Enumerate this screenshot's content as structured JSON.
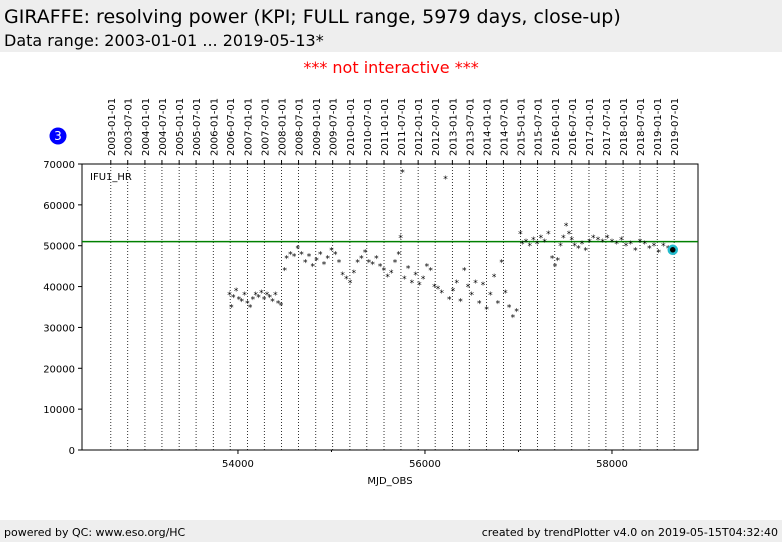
{
  "header": {
    "title": "GIRAFFE: resolving power (KPI; FULL range, 5979 days, close-up)",
    "subtitle": "Data range: 2003-01-01 ... 2019-05-13*"
  },
  "notice": "*** not interactive ***",
  "badge": "3",
  "footer": {
    "left": "powered by QC: www.eso.org/HC",
    "right": "created by trendPlotter v4.0 on 2019-05-15T04:32:40"
  },
  "chart_data": {
    "type": "scatter",
    "xlabel": "MJD_OBS",
    "annotation": "IFU1_HR",
    "color": "#000000",
    "xlim": [
      52332,
      58920
    ],
    "xticks": [
      54000,
      56000,
      58000
    ],
    "xminor_ticks": [
      55000,
      57000
    ],
    "ylim": [
      0,
      70000
    ],
    "yticks": [
      0,
      10000,
      20000,
      30000,
      40000,
      50000,
      60000,
      70000
    ],
    "reference_line": {
      "value": 51000,
      "color": "#008000"
    },
    "highlight": {
      "x": 58650,
      "y": 49000,
      "color": "#22bbcc"
    },
    "top_ticks": [
      {
        "value": 52640,
        "label": "2003-01-01"
      },
      {
        "value": 52821,
        "label": "2003-07-01"
      },
      {
        "value": 53005,
        "label": "2004-01-01"
      },
      {
        "value": 53187,
        "label": "2004-07-01"
      },
      {
        "value": 53371,
        "label": "2005-01-01"
      },
      {
        "value": 53552,
        "label": "2005-07-01"
      },
      {
        "value": 53736,
        "label": "2006-01-01"
      },
      {
        "value": 53917,
        "label": "2006-07-01"
      },
      {
        "value": 54101,
        "label": "2007-01-01"
      },
      {
        "value": 54282,
        "label": "2007-07-01"
      },
      {
        "value": 54466,
        "label": "2008-01-01"
      },
      {
        "value": 54648,
        "label": "2008-07-01"
      },
      {
        "value": 54832,
        "label": "2009-01-01"
      },
      {
        "value": 55013,
        "label": "2009-07-01"
      },
      {
        "value": 55197,
        "label": "2010-01-01"
      },
      {
        "value": 55378,
        "label": "2010-07-01"
      },
      {
        "value": 55562,
        "label": "2011-01-01"
      },
      {
        "value": 55743,
        "label": "2011-07-01"
      },
      {
        "value": 55927,
        "label": "2012-01-01"
      },
      {
        "value": 56109,
        "label": "2012-07-01"
      },
      {
        "value": 56293,
        "label": "2013-01-01"
      },
      {
        "value": 56474,
        "label": "2013-07-01"
      },
      {
        "value": 56658,
        "label": "2014-01-01"
      },
      {
        "value": 56839,
        "label": "2014-07-01"
      },
      {
        "value": 57023,
        "label": "2015-01-01"
      },
      {
        "value": 57204,
        "label": "2015-07-01"
      },
      {
        "value": 57388,
        "label": "2016-01-01"
      },
      {
        "value": 57570,
        "label": "2016-07-01"
      },
      {
        "value": 57754,
        "label": "2017-01-01"
      },
      {
        "value": 57935,
        "label": "2017-07-01"
      },
      {
        "value": 58119,
        "label": "2018-01-01"
      },
      {
        "value": 58300,
        "label": "2018-07-01"
      },
      {
        "value": 58484,
        "label": "2019-01-01"
      },
      {
        "value": 58665,
        "label": "2019-07-01"
      }
    ],
    "x": [
      53910,
      53930,
      53950,
      53980,
      54010,
      54040,
      54070,
      54100,
      54130,
      54160,
      54190,
      54220,
      54250,
      54280,
      54310,
      54340,
      54370,
      54400,
      54430,
      54460,
      54500,
      54520,
      54560,
      54600,
      54640,
      54680,
      54720,
      54760,
      54800,
      54840,
      54880,
      54920,
      54960,
      55000,
      55040,
      55080,
      55120,
      55160,
      55200,
      55240,
      55280,
      55320,
      55360,
      55400,
      55440,
      55480,
      55520,
      55560,
      55600,
      55640,
      55680,
      55720,
      55740,
      55760,
      55780,
      55820,
      55860,
      55900,
      55940,
      55980,
      56020,
      56060,
      56100,
      56140,
      56180,
      56220,
      56260,
      56300,
      56340,
      56380,
      56420,
      56460,
      56500,
      56540,
      56580,
      56620,
      56660,
      56700,
      56740,
      56780,
      56820,
      56860,
      56900,
      56940,
      56980,
      57020,
      57040,
      57080,
      57120,
      57160,
      57200,
      57240,
      57280,
      57320,
      57360,
      57390,
      57420,
      57450,
      57480,
      57510,
      57540,
      57570,
      57600,
      57640,
      57680,
      57720,
      57760,
      57800,
      57850,
      57900,
      57950,
      58000,
      58050,
      58100,
      58150,
      58200,
      58250,
      58300,
      58350,
      58400,
      58450,
      58500,
      58550,
      58600,
      58650
    ],
    "values": [
      38000,
      35000,
      37500,
      39000,
      37000,
      36500,
      38000,
      36000,
      35000,
      37000,
      38000,
      37500,
      38500,
      37000,
      38000,
      37500,
      36500,
      38000,
      36000,
      35500,
      44000,
      47000,
      48000,
      47500,
      49500,
      48000,
      46000,
      47500,
      45000,
      46500,
      48000,
      45500,
      47000,
      49000,
      48000,
      46000,
      43000,
      42000,
      41000,
      43500,
      46000,
      47000,
      48500,
      46000,
      45500,
      47000,
      45000,
      44000,
      42500,
      43500,
      46000,
      48000,
      52000,
      68000,
      42000,
      44500,
      41000,
      43000,
      40500,
      42000,
      45000,
      44000,
      40000,
      39500,
      38500,
      66500,
      37000,
      39000,
      41000,
      36500,
      44000,
      40000,
      38000,
      41000,
      36000,
      40500,
      34500,
      38000,
      42500,
      36000,
      46000,
      38500,
      35000,
      32500,
      34000,
      53000,
      50500,
      51000,
      50000,
      51500,
      50500,
      52000,
      51000,
      53000,
      47000,
      45000,
      46500,
      50000,
      52000,
      55000,
      53000,
      51500,
      50000,
      49500,
      50500,
      49000,
      51000,
      52000,
      51500,
      51000,
      52000,
      51000,
      50500,
      51500,
      50000,
      50500,
      49000,
      51000,
      50500,
      49500,
      50000,
      48500,
      50000,
      49500,
      49000
    ]
  }
}
